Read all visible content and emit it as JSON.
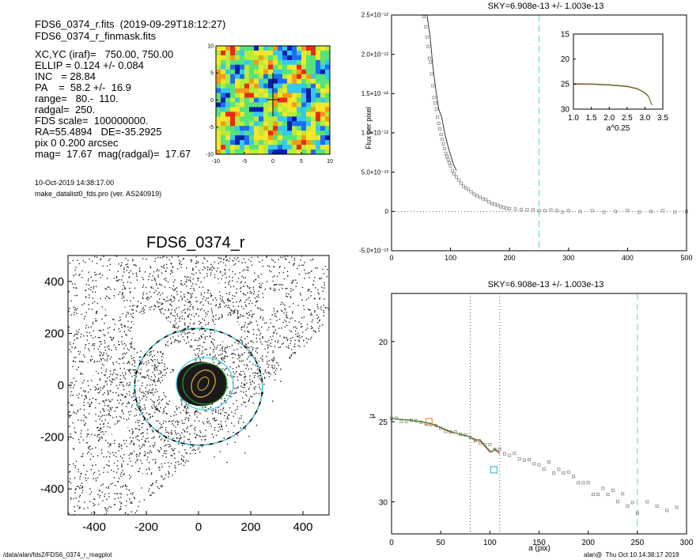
{
  "header": {
    "file_line": "FDS6_0374_r.fits  (2019-09-29T18:12:27)",
    "mask_line": "FDS6_0374_r_finmask.fits",
    "params": [
      "XC,YC (iraf)=   750.00, 750.00",
      "ELLIP = 0.124 +/- 0.084",
      "INC   = 28.84",
      "PA    =  58.2 +/-  16.9",
      "range=   80.-  110.",
      "radgal=  250.",
      "FDS scale=  100000000.",
      "RA=55.4894   DE=-35.2925",
      "pix 0 0.200 arcsec",
      "mag=  17.67  mag(radgal)=  17.67"
    ],
    "date_line": "10-Oct-2019 14:38:17.00",
    "program_line": "make_datalist0_fds.pro (ver. AS240919)"
  },
  "footer": {
    "path": "/data/alan/fds2/FDS6_0374_r_magplot",
    "user_time": "alan@  Thu Oct 10 14:38:17 2019"
  },
  "chart_data": [
    {
      "id": "residual_map",
      "type": "heatmap",
      "xlim": [
        -10,
        10
      ],
      "ylim": [
        -10,
        10
      ],
      "xticks": [
        "-10",
        "-5",
        "0",
        "5",
        "10"
      ],
      "yticks": [
        "10",
        "5",
        "0",
        "-5",
        "-10"
      ],
      "colormap": [
        "#0a1ea8",
        "#1e6cf0",
        "#35c8f0",
        "#58e27a",
        "#b6ec3a",
        "#f2e829",
        "#f39a1d",
        "#e82a15"
      ]
    },
    {
      "id": "galaxy_image",
      "type": "image",
      "title": "FDS6_0374_r",
      "xlim": [
        -500,
        500
      ],
      "ylim": [
        -500,
        500
      ],
      "xticks": [
        "-400",
        "-200",
        "0",
        "200",
        "400"
      ],
      "yticks": [
        "400",
        "200",
        "0",
        "-200",
        "-400"
      ],
      "radgal": 250,
      "colors": {
        "circle": "#50d0dc",
        "ellipse_inner": "#e8b040",
        "ellipse_green": "#2a9a30"
      }
    },
    {
      "id": "flux_profile",
      "type": "scatter",
      "title": "SKY=6.908e-13 +/- 1.003e-13",
      "ylabel": "Flux per pixel",
      "xlim": [
        0,
        500
      ],
      "ylim": [
        -5e-13,
        2.5e-12
      ],
      "xticks": [
        "0",
        "100",
        "200",
        "300",
        "400",
        "500"
      ],
      "yticks": [
        "-5.0×10⁻¹³",
        "0",
        "5.0×10⁻¹³",
        "1.0×10⁻¹²",
        "1.5×10⁻¹²",
        "2.0×10⁻¹²",
        "2.5×10⁻¹²"
      ],
      "vline_cyan": 250,
      "points": [
        [
          55,
          2.48e-12
        ],
        [
          58,
          2.35e-12
        ],
        [
          60,
          2.22e-12
        ],
        [
          62,
          2.1e-12
        ],
        [
          64,
          1.95e-12
        ],
        [
          66,
          1.9e-12
        ],
        [
          68,
          1.75e-12
        ],
        [
          70,
          1.6e-12
        ],
        [
          72,
          1.45e-12
        ],
        [
          74,
          1.38e-12
        ],
        [
          76,
          1.3e-12
        ],
        [
          78,
          1.2e-12
        ],
        [
          80,
          1.12e-12
        ],
        [
          82,
          1.05e-12
        ],
        [
          84,
          9.8e-13
        ],
        [
          86,
          9.2e-13
        ],
        [
          88,
          8.6e-13
        ],
        [
          90,
          8e-13
        ],
        [
          92,
          7.4e-13
        ],
        [
          94,
          7e-13
        ],
        [
          96,
          6.6e-13
        ],
        [
          98,
          6.2e-13
        ],
        [
          100,
          5.8e-13
        ],
        [
          103,
          5.2e-13
        ],
        [
          106,
          4.8e-13
        ],
        [
          110,
          4.4e-13
        ],
        [
          114,
          4e-13
        ],
        [
          118,
          3.6e-13
        ],
        [
          122,
          3.2e-13
        ],
        [
          126,
          3e-13
        ],
        [
          130,
          2.8e-13
        ],
        [
          135,
          2.5e-13
        ],
        [
          140,
          2.2e-13
        ],
        [
          145,
          2e-13
        ],
        [
          150,
          1.8e-13
        ],
        [
          155,
          1.6e-13
        ],
        [
          160,
          1.5e-13
        ],
        [
          165,
          1.2e-13
        ],
        [
          170,
          1e-13
        ],
        [
          175,
          9e-14
        ],
        [
          180,
          8e-14
        ],
        [
          185,
          6e-14
        ],
        [
          190,
          5e-14
        ],
        [
          195,
          4e-14
        ],
        [
          200,
          3.5e-14
        ],
        [
          210,
          3e-14
        ],
        [
          220,
          2.5e-14
        ],
        [
          230,
          2e-14
        ],
        [
          240,
          2e-14
        ],
        [
          250,
          1e-14
        ],
        [
          260,
          1e-14
        ],
        [
          270,
          2e-14
        ],
        [
          280,
          1e-14
        ],
        [
          290,
          -1e-14
        ],
        [
          300,
          1e-14
        ],
        [
          320,
          0.0
        ],
        [
          340,
          1e-14
        ],
        [
          360,
          -1e-14
        ],
        [
          380,
          0.0
        ],
        [
          400,
          1e-14
        ],
        [
          420,
          -1e-14
        ],
        [
          440,
          0.0
        ],
        [
          460,
          1e-14
        ],
        [
          480,
          -1e-14
        ],
        [
          500,
          0.0
        ]
      ],
      "line": [
        [
          60,
          2.5e-12
        ],
        [
          65,
          2.25e-12
        ],
        [
          70,
          1.85e-12
        ],
        [
          75,
          1.55e-12
        ],
        [
          80,
          1.3e-12
        ],
        [
          85,
          1.2e-12
        ],
        [
          90,
          1e-12
        ],
        [
          95,
          8.5e-13
        ],
        [
          100,
          7.2e-13
        ],
        [
          105,
          6e-13
        ],
        [
          110,
          5.2e-13
        ]
      ],
      "inset": {
        "xlabel": "a^0.25",
        "xlim": [
          1.0,
          3.5
        ],
        "ylim": [
          15,
          30
        ],
        "xticks": [
          "1.0",
          "1.5",
          "2.0",
          "2.5",
          "3.0",
          "3.5"
        ],
        "yticks": [
          "15",
          "20",
          "25",
          "30"
        ],
        "series": [
          [
            1.0,
            25.0
          ],
          [
            1.5,
            25.05
          ],
          [
            2.0,
            25.2
          ],
          [
            2.5,
            25.5
          ],
          [
            2.8,
            26.0
          ],
          [
            3.0,
            26.8
          ],
          [
            3.1,
            27.5
          ],
          [
            3.15,
            28.5
          ],
          [
            3.2,
            29.2
          ]
        ]
      }
    },
    {
      "id": "mu_profile",
      "type": "scatter",
      "title": "SKY=6.908e-13 +/- 1.003e-13",
      "xlabel": "a (pix)",
      "ylabel": "μ",
      "xlim": [
        0,
        300
      ],
      "ylim": [
        32,
        17
      ],
      "xticks": [
        "0",
        "50",
        "100",
        "150",
        "200",
        "250",
        "300"
      ],
      "yticks": [
        "20",
        "25",
        "30"
      ],
      "vline_cyan": 250,
      "vlines_dotted": [
        80,
        110
      ],
      "points": [
        [
          0,
          24.8
        ],
        [
          5,
          24.85
        ],
        [
          10,
          24.9
        ],
        [
          15,
          24.9
        ],
        [
          20,
          24.95
        ],
        [
          25,
          25.0
        ],
        [
          30,
          25.05
        ],
        [
          35,
          25.1
        ],
        [
          40,
          25.2
        ],
        [
          45,
          25.3
        ],
        [
          50,
          25.4
        ],
        [
          55,
          25.5
        ],
        [
          60,
          25.6
        ],
        [
          65,
          25.7
        ],
        [
          70,
          25.8
        ],
        [
          75,
          25.9
        ],
        [
          80,
          26.0
        ],
        [
          85,
          26.15
        ],
        [
          90,
          26.3
        ],
        [
          95,
          26.4
        ],
        [
          100,
          26.5
        ],
        [
          105,
          26.65
        ],
        [
          110,
          26.8
        ],
        [
          115,
          26.9
        ],
        [
          120,
          27.0
        ],
        [
          125,
          27.1
        ],
        [
          130,
          27.2
        ],
        [
          135,
          27.3
        ],
        [
          140,
          27.4
        ],
        [
          145,
          27.6
        ],
        [
          150,
          27.7
        ],
        [
          155,
          27.8
        ],
        [
          160,
          28.0
        ],
        [
          165,
          28.1
        ],
        [
          170,
          28.2
        ],
        [
          175,
          28.3
        ],
        [
          180,
          28.5
        ],
        [
          185,
          28.6
        ],
        [
          190,
          28.7
        ],
        [
          195,
          28.9
        ],
        [
          200,
          29.0
        ],
        [
          205,
          29.1
        ],
        [
          210,
          29.3
        ],
        [
          215,
          29.4
        ],
        [
          220,
          29.5
        ],
        [
          225,
          29.7
        ],
        [
          230,
          29.8
        ],
        [
          235,
          29.9
        ],
        [
          240,
          30.0
        ],
        [
          245,
          30.2
        ],
        [
          250,
          30.3
        ],
        [
          260,
          30.4
        ],
        [
          270,
          30.5
        ],
        [
          280,
          30.6
        ],
        [
          290,
          30.7
        ]
      ],
      "green_line": [
        [
          0,
          24.8
        ],
        [
          20,
          24.9
        ],
        [
          40,
          25.1
        ],
        [
          60,
          25.6
        ],
        [
          70,
          25.8
        ],
        [
          80,
          25.95
        ],
        [
          85,
          26.2
        ],
        [
          90,
          26.1
        ],
        [
          95,
          26.5
        ],
        [
          100,
          26.8
        ],
        [
          102,
          26.9
        ],
        [
          105,
          26.7
        ],
        [
          110,
          26.9
        ]
      ],
      "red_line": [
        [
          0,
          24.8
        ],
        [
          20,
          24.92
        ],
        [
          40,
          25.12
        ],
        [
          60,
          25.65
        ],
        [
          75,
          25.85
        ],
        [
          90,
          26.2
        ],
        [
          100,
          26.9
        ],
        [
          105,
          26.75
        ],
        [
          110,
          27.0
        ]
      ],
      "markers": [
        {
          "x": 38,
          "y": 25.0,
          "color": "#e87a3a",
          "shape": "square"
        },
        {
          "x": 104,
          "y": 28.0,
          "color": "#2aa7c8",
          "shape": "square"
        }
      ]
    }
  ]
}
